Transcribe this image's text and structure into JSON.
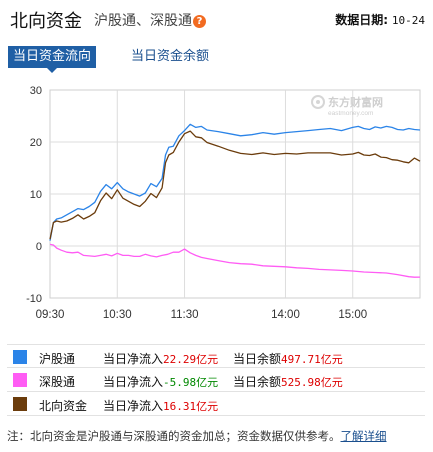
{
  "header": {
    "title": "北向资金",
    "subtitle": "沪股通、深股通",
    "help_glyph": "?",
    "date_label": "数据日期:",
    "date_value": "10-24"
  },
  "tabs": [
    {
      "label": "当日资金流向",
      "active": true
    },
    {
      "label": "当日资金余额",
      "active": false
    }
  ],
  "watermark": {
    "name": "东方财富网",
    "domain": "eastmoney.com"
  },
  "legend": [
    {
      "name": "沪股通",
      "color": "#2b84e8",
      "flow_label": "当日净流入",
      "flow_value": "22.29",
      "flow_unit": "亿元",
      "flow_dir": "up",
      "balance_label": "当日余额",
      "balance_value": "497.71",
      "balance_unit": "亿元"
    },
    {
      "name": "深股通",
      "color": "#ff5cf4",
      "flow_label": "当日净流入",
      "flow_value": "-5.98",
      "flow_unit": "亿元",
      "flow_dir": "down",
      "balance_label": "当日余额",
      "balance_value": "525.98",
      "balance_unit": "亿元"
    },
    {
      "name": "北向资金",
      "color": "#6b3c0c",
      "flow_label": "当日净流入",
      "flow_value": "16.31",
      "flow_unit": "亿元",
      "flow_dir": "up",
      "balance_label": "",
      "balance_value": "",
      "balance_unit": ""
    }
  ],
  "footnote": {
    "text": "注：北向资金是沪股通与深股通的资金加总；资金数据仅供参考。",
    "link": "了解详细"
  },
  "chart_data": {
    "type": "line",
    "x_unit": "minutes since 09:30 (trading time, lunch break removed)",
    "xlim": [
      0,
      330
    ],
    "ylim": [
      -10,
      30
    ],
    "yticks": [
      -10,
      0,
      10,
      20,
      30
    ],
    "xticks": [
      {
        "value": 0,
        "label": "09:30"
      },
      {
        "value": 60,
        "label": "10:30"
      },
      {
        "value": 120,
        "label": "11:30"
      },
      {
        "value": 210,
        "label": "14:00"
      },
      {
        "value": 270,
        "label": "15:00"
      }
    ],
    "grid": true,
    "legend_position": "below",
    "series": [
      {
        "name": "沪股通",
        "color": "#2b84e8",
        "x": [
          0,
          3,
          6,
          10,
          15,
          20,
          25,
          30,
          35,
          40,
          45,
          50,
          55,
          60,
          65,
          70,
          75,
          80,
          85,
          90,
          95,
          100,
          103,
          106,
          110,
          115,
          120,
          125,
          130,
          135,
          140,
          150,
          160,
          170,
          180,
          190,
          200,
          210,
          220,
          230,
          240,
          250,
          260,
          270,
          275,
          280,
          285,
          290,
          295,
          300,
          305,
          310,
          315,
          320,
          325,
          330
        ],
        "y": [
          1.0,
          4.5,
          5.2,
          5.4,
          6.0,
          6.6,
          7.2,
          7.0,
          7.6,
          8.4,
          10.5,
          11.8,
          11.0,
          12.2,
          11.0,
          10.4,
          10.0,
          9.6,
          10.2,
          12.0,
          11.4,
          13.0,
          17.5,
          19.0,
          19.2,
          21.2,
          22.2,
          23.4,
          22.8,
          23.0,
          22.3,
          22.0,
          21.6,
          21.2,
          21.4,
          21.8,
          21.5,
          21.8,
          22.0,
          22.2,
          22.4,
          22.6,
          22.2,
          22.8,
          23.0,
          22.6,
          22.4,
          22.9,
          22.7,
          23.0,
          22.8,
          22.4,
          22.3,
          22.6,
          22.4,
          22.3
        ]
      },
      {
        "name": "深股通",
        "color": "#ff5cf4",
        "x": [
          0,
          3,
          6,
          10,
          15,
          20,
          25,
          30,
          35,
          40,
          45,
          50,
          55,
          60,
          65,
          70,
          75,
          80,
          85,
          90,
          95,
          100,
          105,
          110,
          115,
          120,
          125,
          130,
          135,
          140,
          150,
          160,
          170,
          180,
          190,
          200,
          210,
          220,
          230,
          240,
          250,
          260,
          270,
          280,
          290,
          300,
          310,
          320,
          325,
          330
        ],
        "y": [
          0.3,
          0.2,
          -0.4,
          -0.8,
          -1.2,
          -1.3,
          -1.2,
          -1.8,
          -1.9,
          -2.0,
          -1.8,
          -1.6,
          -1.9,
          -1.4,
          -1.8,
          -1.8,
          -2.0,
          -2.0,
          -1.6,
          -1.9,
          -2.1,
          -1.8,
          -1.6,
          -1.2,
          -1.2,
          -0.6,
          -1.3,
          -1.8,
          -2.2,
          -2.4,
          -2.8,
          -3.2,
          -3.4,
          -3.5,
          -3.8,
          -3.9,
          -4.0,
          -4.2,
          -4.3,
          -4.5,
          -4.6,
          -4.7,
          -4.8,
          -5.0,
          -5.1,
          -5.2,
          -5.5,
          -5.9,
          -6.0,
          -5.98
        ]
      },
      {
        "name": "北向资金",
        "color": "#6b3c0c",
        "x": [
          0,
          3,
          6,
          10,
          15,
          20,
          25,
          30,
          35,
          40,
          45,
          50,
          55,
          60,
          65,
          70,
          75,
          80,
          85,
          90,
          95,
          100,
          103,
          106,
          110,
          115,
          120,
          125,
          130,
          135,
          140,
          150,
          160,
          170,
          180,
          190,
          200,
          210,
          220,
          230,
          240,
          250,
          260,
          270,
          275,
          280,
          285,
          290,
          295,
          300,
          305,
          310,
          315,
          320,
          325,
          330
        ],
        "y": [
          1.3,
          4.5,
          4.8,
          4.6,
          4.8,
          5.3,
          6.0,
          5.2,
          5.7,
          6.4,
          8.7,
          10.2,
          9.1,
          10.8,
          9.2,
          8.6,
          8.0,
          7.6,
          8.6,
          10.1,
          9.3,
          11.2,
          16.0,
          17.5,
          18.0,
          20.0,
          21.6,
          22.1,
          21.0,
          20.8,
          19.9,
          19.2,
          18.4,
          17.8,
          17.6,
          17.9,
          17.6,
          17.8,
          17.7,
          17.9,
          17.9,
          17.9,
          17.5,
          17.7,
          18.0,
          17.5,
          17.4,
          17.7,
          17.1,
          17.0,
          16.6,
          16.5,
          16.2,
          16.0,
          16.9,
          16.31
        ]
      }
    ]
  }
}
